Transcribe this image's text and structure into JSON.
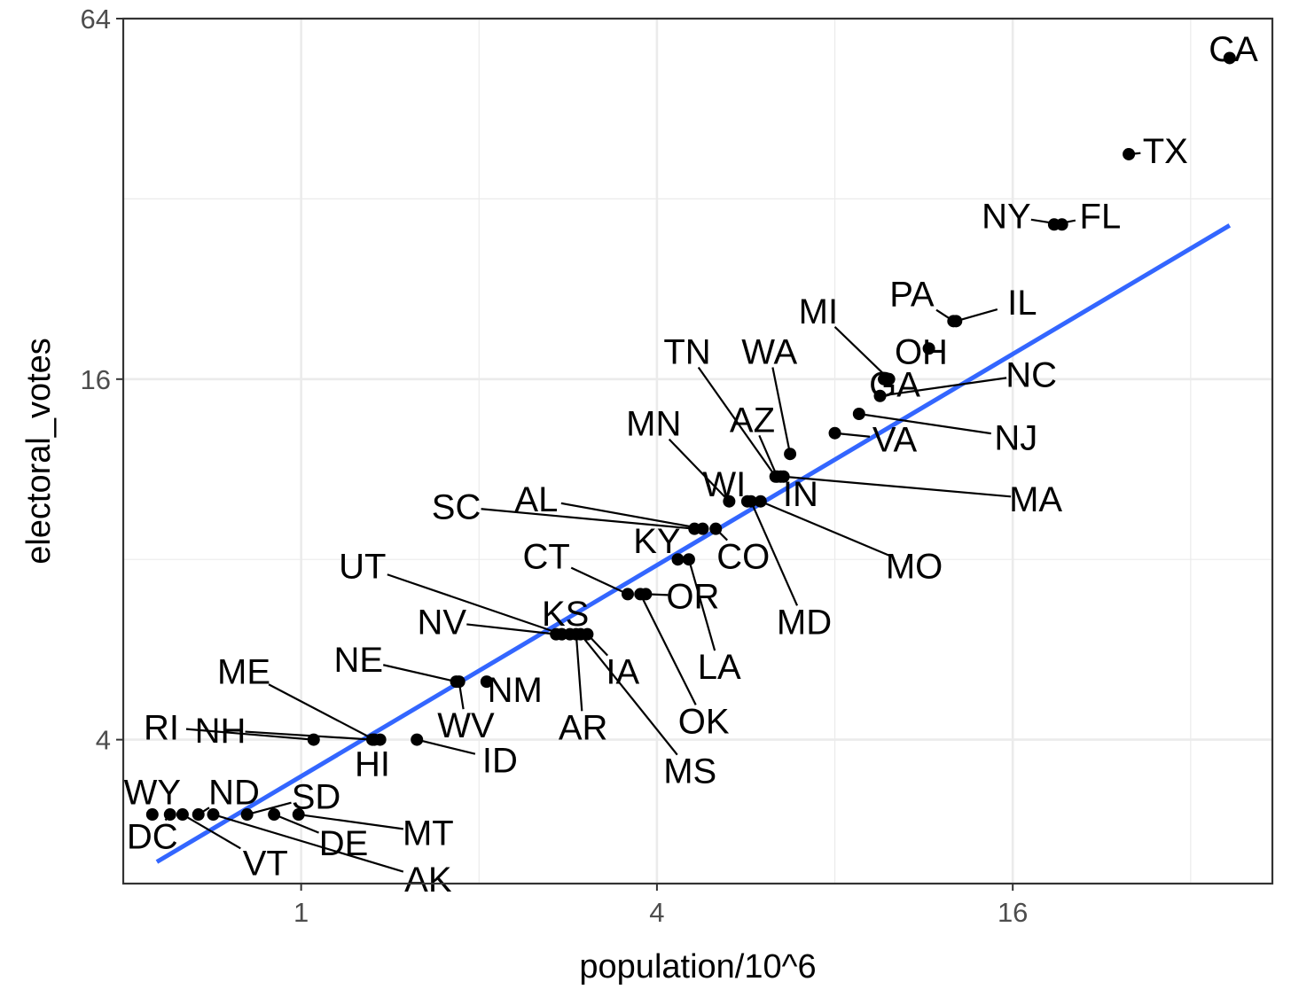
{
  "chart_data": {
    "type": "scatter",
    "title": "",
    "xlabel": "population/10^6",
    "ylabel": "electoral_votes",
    "x_scale": "log2",
    "y_scale": "log2",
    "xlim": [
      0.5,
      44
    ],
    "ylim": [
      2.3,
      64
    ],
    "x_ticks": [
      {
        "value": 1,
        "label": "1"
      },
      {
        "value": 4,
        "label": "4"
      },
      {
        "value": 16,
        "label": "16"
      }
    ],
    "y_ticks": [
      {
        "value": 4,
        "label": "4"
      },
      {
        "value": 16,
        "label": "16"
      },
      {
        "value": 64,
        "label": "64"
      }
    ],
    "x_minor_ticks": [
      0.5,
      2,
      8,
      32
    ],
    "y_minor_ticks": [
      2.3,
      8,
      32
    ],
    "grid": true,
    "legend": "none",
    "point_color": "#000000",
    "fit_line": {
      "color": "#3366ff",
      "x": [
        0.57,
        37.25
      ],
      "y": [
        2.5,
        28.9
      ]
    },
    "points": [
      {
        "label": "CA",
        "x": 37.25,
        "y": 55,
        "lx": 37.8,
        "ly": 57
      },
      {
        "label": "TX",
        "x": 25.15,
        "y": 38,
        "lx": 29,
        "ly": 38.5
      },
      {
        "label": "NY",
        "x": 19.38,
        "y": 29,
        "lx": 15.6,
        "ly": 30
      },
      {
        "label": "FL",
        "x": 18.8,
        "y": 29,
        "lx": 22.5,
        "ly": 30
      },
      {
        "label": "IL",
        "x": 12.83,
        "y": 20,
        "lx": 16.6,
        "ly": 21.5
      },
      {
        "label": "PA",
        "x": 12.7,
        "y": 20,
        "lx": 10.8,
        "ly": 22.2
      },
      {
        "label": "OH",
        "x": 11.54,
        "y": 18,
        "lx": 11.2,
        "ly": 17.8
      },
      {
        "label": "MI",
        "x": 9.88,
        "y": 16,
        "lx": 7.5,
        "ly": 20.8
      },
      {
        "label": "GA",
        "x": 9.69,
        "y": 16,
        "lx": 10.1,
        "ly": 15.7
      },
      {
        "label": "NC",
        "x": 9.54,
        "y": 15,
        "lx": 17.2,
        "ly": 16.3
      },
      {
        "label": "NJ",
        "x": 8.79,
        "y": 14,
        "lx": 16.2,
        "ly": 12.8
      },
      {
        "label": "VA",
        "x": 8.0,
        "y": 13,
        "lx": 10.1,
        "ly": 12.7
      },
      {
        "label": "WA",
        "x": 6.72,
        "y": 12,
        "lx": 6.2,
        "ly": 17.8
      },
      {
        "label": "AZ",
        "x": 6.39,
        "y": 11,
        "lx": 5.8,
        "ly": 13.7
      },
      {
        "label": "MA",
        "x": 6.55,
        "y": 11,
        "lx": 17.5,
        "ly": 10.1
      },
      {
        "label": "IN",
        "x": 6.48,
        "y": 11,
        "lx": 7.0,
        "ly": 10.3
      },
      {
        "label": "TN",
        "x": 6.35,
        "y": 11,
        "lx": 4.5,
        "ly": 17.8
      },
      {
        "label": "MO",
        "x": 5.99,
        "y": 10,
        "lx": 10.9,
        "ly": 7.8
      },
      {
        "label": "MD",
        "x": 5.77,
        "y": 10,
        "lx": 7.1,
        "ly": 6.3
      },
      {
        "label": "WI",
        "x": 5.69,
        "y": 10,
        "lx": 5.2,
        "ly": 10.7
      },
      {
        "label": "MN",
        "x": 5.3,
        "y": 10,
        "lx": 3.95,
        "ly": 13.5
      },
      {
        "label": "CO",
        "x": 5.03,
        "y": 9,
        "lx": 5.6,
        "ly": 8.1
      },
      {
        "label": "AL",
        "x": 4.78,
        "y": 9,
        "lx": 2.5,
        "ly": 10.1
      },
      {
        "label": "SC",
        "x": 4.63,
        "y": 9,
        "lx": 1.83,
        "ly": 9.8
      },
      {
        "label": "LA",
        "x": 4.53,
        "y": 8,
        "lx": 5.1,
        "ly": 5.3
      },
      {
        "label": "KY",
        "x": 4.34,
        "y": 8,
        "lx": 4.0,
        "ly": 8.6
      },
      {
        "label": "OR",
        "x": 3.83,
        "y": 7,
        "lx": 4.6,
        "ly": 6.95
      },
      {
        "label": "OK",
        "x": 3.75,
        "y": 7,
        "lx": 4.8,
        "ly": 4.3
      },
      {
        "label": "CT",
        "x": 3.57,
        "y": 7,
        "lx": 2.6,
        "ly": 8.1
      },
      {
        "label": "IA",
        "x": 3.05,
        "y": 6,
        "lx": 3.5,
        "ly": 5.2
      },
      {
        "label": "MS",
        "x": 2.97,
        "y": 6,
        "lx": 4.55,
        "ly": 3.55
      },
      {
        "label": "AR",
        "x": 2.92,
        "y": 6,
        "lx": 3.0,
        "ly": 4.2
      },
      {
        "label": "KS",
        "x": 2.85,
        "y": 6,
        "lx": 2.8,
        "ly": 6.5
      },
      {
        "label": "UT",
        "x": 2.76,
        "y": 6,
        "lx": 1.27,
        "ly": 7.8
      },
      {
        "label": "NV",
        "x": 2.7,
        "y": 6,
        "lx": 1.73,
        "ly": 6.3
      },
      {
        "label": "NM",
        "x": 2.06,
        "y": 5,
        "lx": 2.3,
        "ly": 4.85
      },
      {
        "label": "NE",
        "x": 1.83,
        "y": 5,
        "lx": 1.25,
        "ly": 5.45
      },
      {
        "label": "WV",
        "x": 1.85,
        "y": 5,
        "lx": 1.9,
        "ly": 4.23
      },
      {
        "label": "ID",
        "x": 1.57,
        "y": 4,
        "lx": 2.17,
        "ly": 3.7
      },
      {
        "label": "HI",
        "x": 1.36,
        "y": 4,
        "lx": 1.32,
        "ly": 3.65
      },
      {
        "label": "NH",
        "x": 1.32,
        "y": 4,
        "lx": 0.73,
        "ly": 4.15
      },
      {
        "label": "ME",
        "x": 1.33,
        "y": 4,
        "lx": 0.8,
        "ly": 5.2
      },
      {
        "label": "RI",
        "x": 1.05,
        "y": 4,
        "lx": 0.58,
        "ly": 4.2
      },
      {
        "label": "MT",
        "x": 0.99,
        "y": 3,
        "lx": 1.64,
        "ly": 2.8
      },
      {
        "label": "DE",
        "x": 0.9,
        "y": 3,
        "lx": 1.18,
        "ly": 2.69
      },
      {
        "label": "SD",
        "x": 0.81,
        "y": 3,
        "lx": 1.06,
        "ly": 3.22
      },
      {
        "label": "AK",
        "x": 0.71,
        "y": 3,
        "lx": 1.64,
        "ly": 2.34
      },
      {
        "label": "ND",
        "x": 0.67,
        "y": 3,
        "lx": 0.77,
        "ly": 3.27
      },
      {
        "label": "VT",
        "x": 0.63,
        "y": 3,
        "lx": 0.87,
        "ly": 2.49
      },
      {
        "label": "DC",
        "x": 0.6,
        "y": 3,
        "lx": 0.56,
        "ly": 2.76
      },
      {
        "label": "WY",
        "x": 0.56,
        "y": 3,
        "lx": 0.56,
        "ly": 3.27
      }
    ]
  }
}
